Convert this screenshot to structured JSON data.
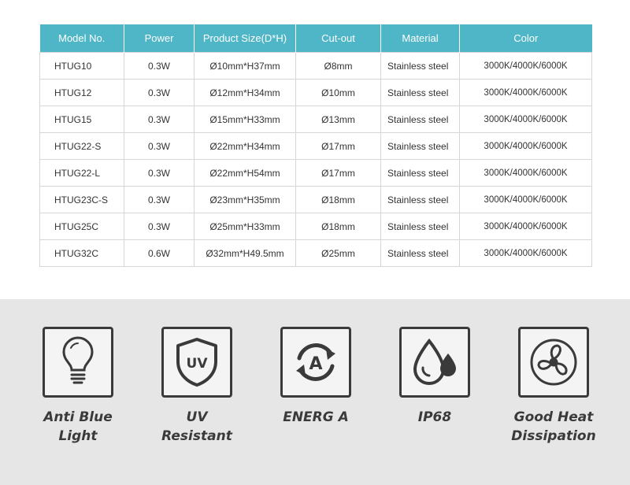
{
  "table": {
    "headers": [
      "Model No.",
      "Power",
      "Product Size(D*H)",
      "Cut-out",
      "Material",
      "Color"
    ],
    "rows": [
      [
        "HTUG10",
        "0.3W",
        "Ø10mm*H37mm",
        "Ø8mm",
        "Stainless steel",
        "3000K/4000K/6000K"
      ],
      [
        "HTUG12",
        "0.3W",
        "Ø12mm*H34mm",
        "Ø10mm",
        "Stainless steel",
        "3000K/4000K/6000K"
      ],
      [
        "HTUG15",
        "0.3W",
        "Ø15mm*H33mm",
        "Ø13mm",
        "Stainless steel",
        "3000K/4000K/6000K"
      ],
      [
        "HTUG22-S",
        "0.3W",
        "Ø22mm*H34mm",
        "Ø17mm",
        "Stainless steel",
        "3000K/4000K/6000K"
      ],
      [
        "HTUG22-L",
        "0.3W",
        "Ø22mm*H54mm",
        "Ø17mm",
        "Stainless steel",
        "3000K/4000K/6000K"
      ],
      [
        "HTUG23C-S",
        "0.3W",
        "Ø23mm*H35mm",
        "Ø18mm",
        "Stainless steel",
        "3000K/4000K/6000K"
      ],
      [
        "HTUG25C",
        "0.3W",
        "Ø25mm*H33mm",
        "Ø18mm",
        "Stainless steel",
        "3000K/4000K/6000K"
      ],
      [
        "HTUG32C",
        "0.6W",
        "Ø32mm*H49.5mm",
        "Ø25mm",
        "Stainless steel",
        "3000K/4000K/6000K"
      ]
    ]
  },
  "features": [
    {
      "label": "Anti Blue\nLight",
      "icon": "light-bulb-icon"
    },
    {
      "label": "UV\nResistant",
      "icon": "uv-shield-icon",
      "icon_text": "UV"
    },
    {
      "label": "ENERG A",
      "icon": "energy-a-icon",
      "icon_text": "A"
    },
    {
      "label": "IP68",
      "icon": "water-drop-icon"
    },
    {
      "label": "Good Heat\nDissipation",
      "icon": "fan-icon"
    }
  ],
  "colors": {
    "header_bg": "#4eb6c6",
    "feature_band_bg": "#e6e6e6",
    "icon_stroke": "#3a3a3a"
  }
}
